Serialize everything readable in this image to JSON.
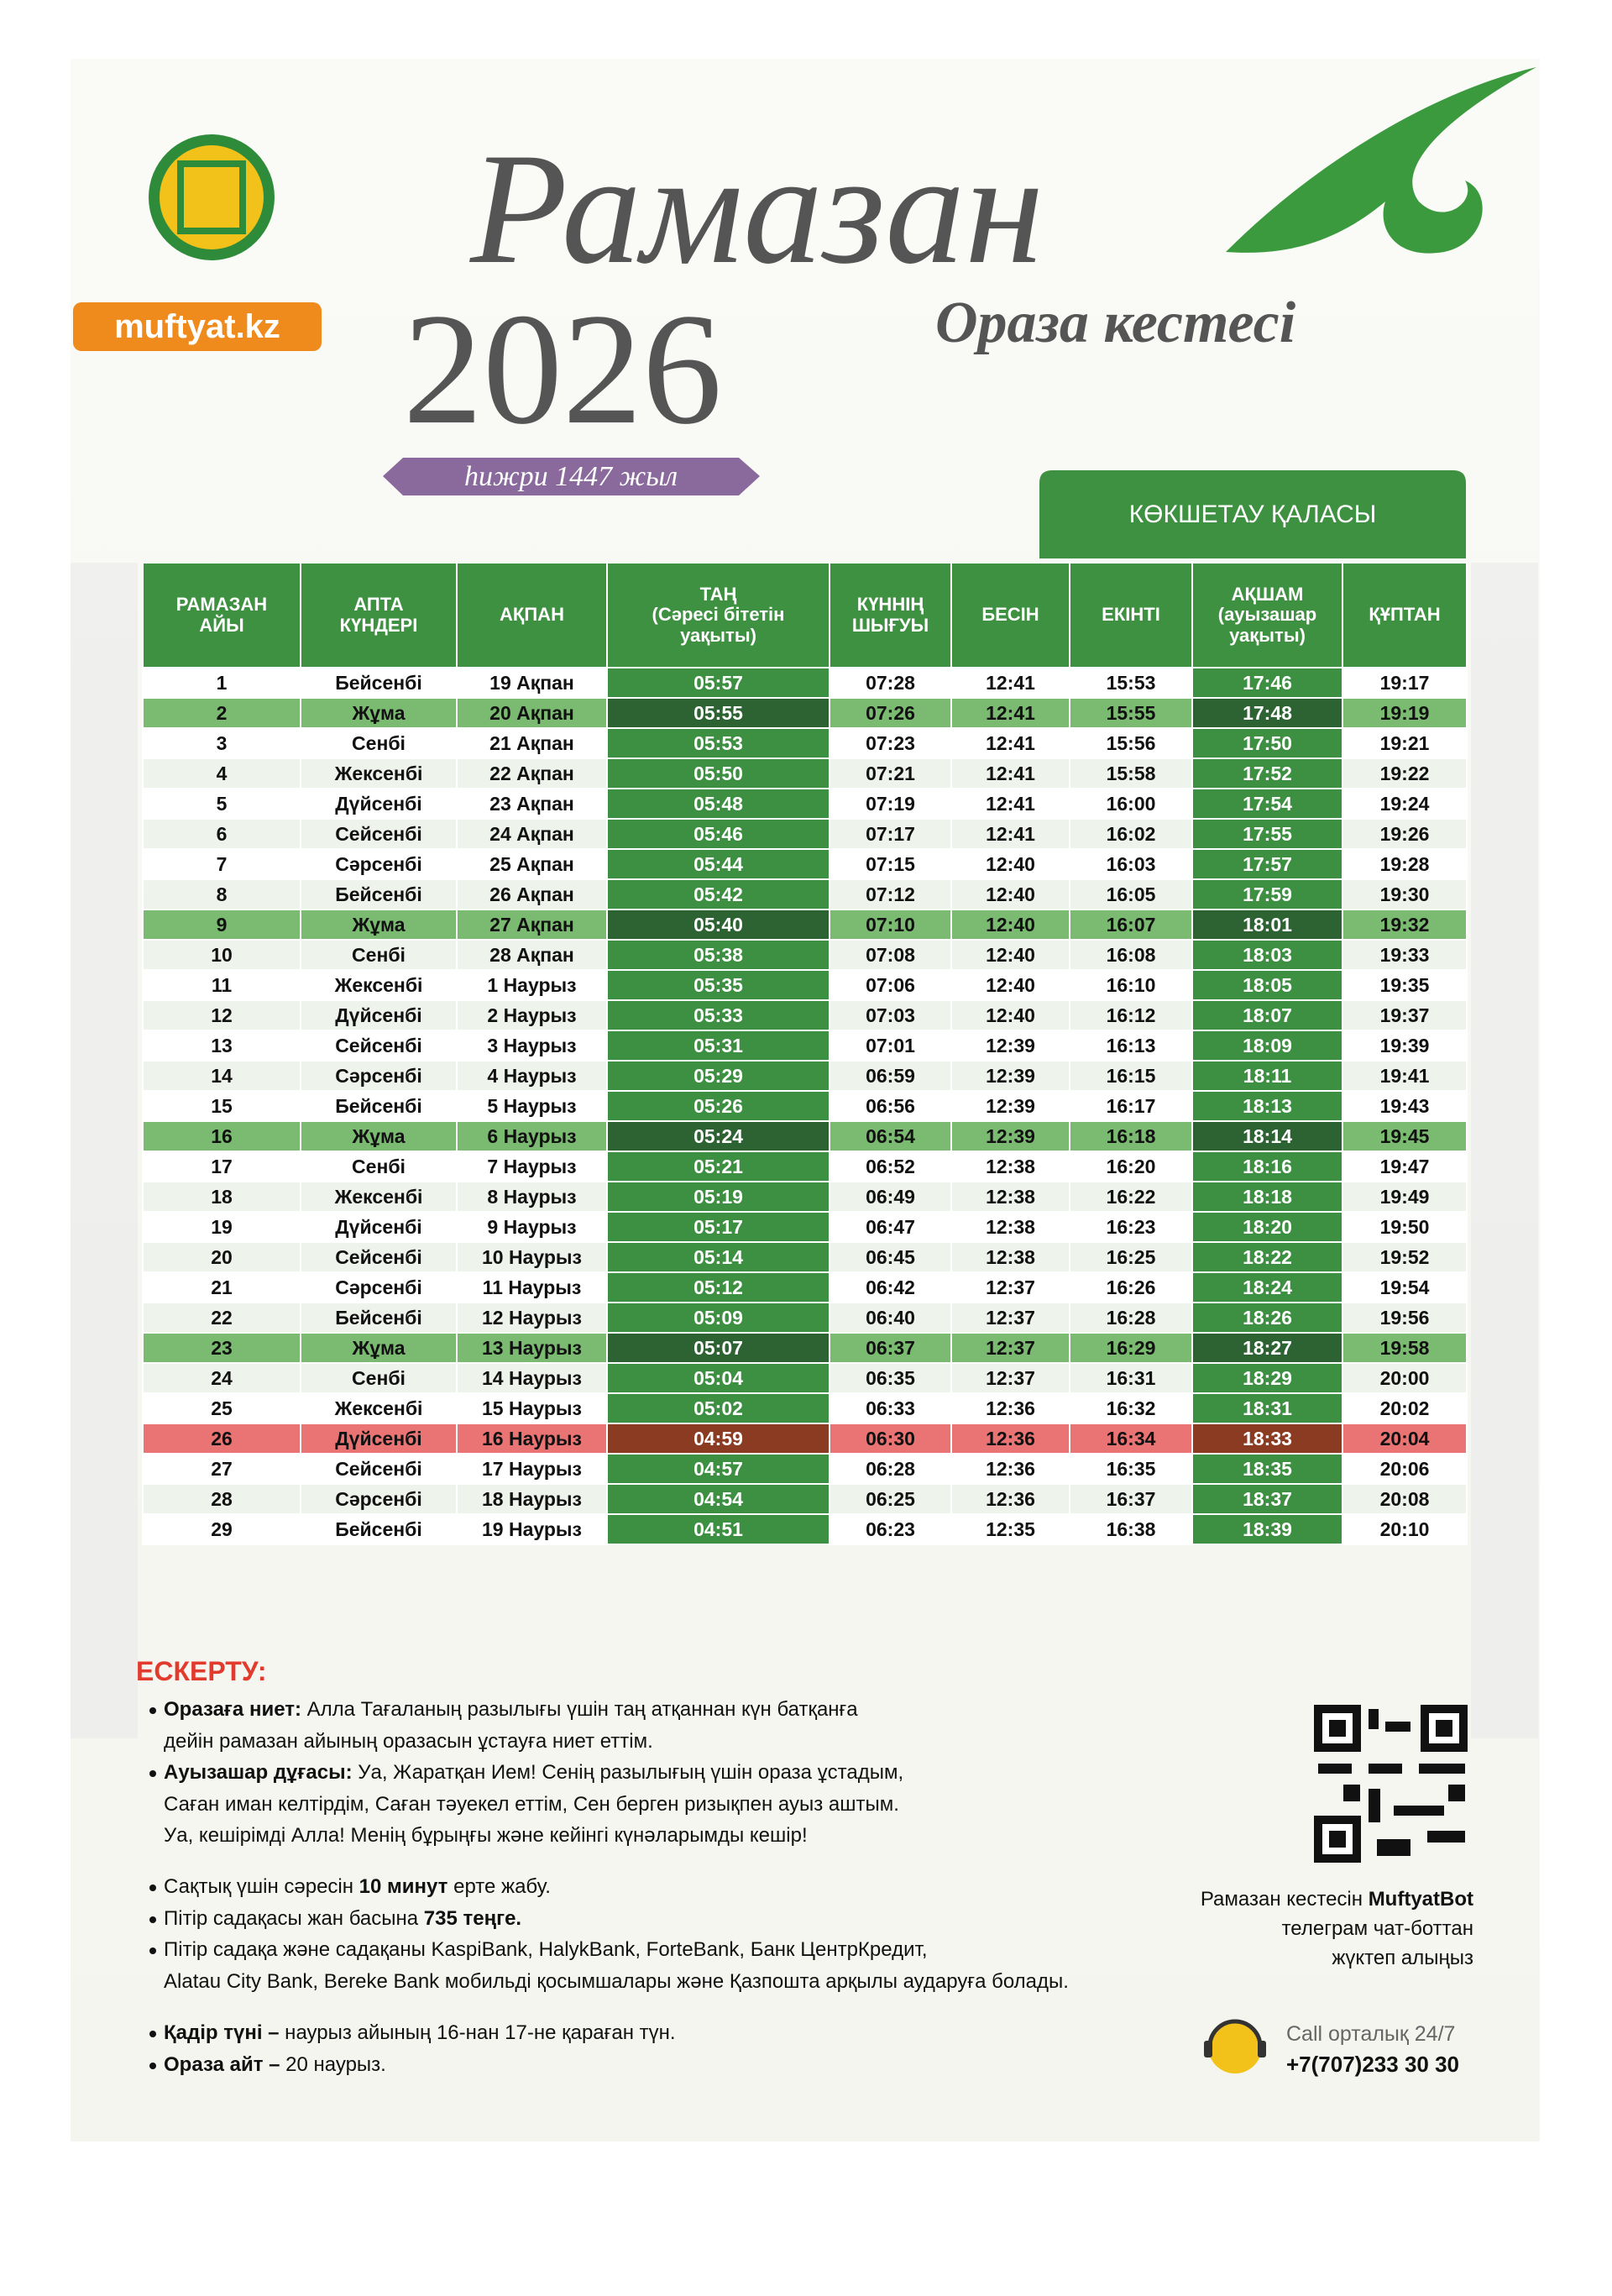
{
  "header": {
    "website": "muftyat.kz",
    "title": "Рамазан",
    "year": "2026",
    "subtitle": "Ораза кестесі",
    "hijri": "һижри 1447 жыл",
    "city": "КӨКШЕТАУ ҚАЛАСЫ"
  },
  "table": {
    "columns": [
      "РАМАЗАН\nАЙЫ",
      "АПТА\nКҮНДЕРІ",
      "АҚПАН",
      "ТАҢ\n(Сәресі бітетін\nуақыты)",
      "КҮННІҢ\nШЫҒУЫ",
      "БЕСІН",
      "ЕКІНТІ",
      "АҚШАМ\n(ауызашар\nуақыты)",
      "ҚҰПТАН"
    ],
    "rows": [
      [
        "1",
        "Бейсенбі",
        "19 Ақпан",
        "05:57",
        "07:28",
        "12:41",
        "15:53",
        "17:46",
        "19:17"
      ],
      [
        "2",
        "Жұма",
        "20 Ақпан",
        "05:55",
        "07:26",
        "12:41",
        "15:55",
        "17:48",
        "19:19"
      ],
      [
        "3",
        "Сенбі",
        "21 Ақпан",
        "05:53",
        "07:23",
        "12:41",
        "15:56",
        "17:50",
        "19:21"
      ],
      [
        "4",
        "Жексенбі",
        "22 Ақпан",
        "05:50",
        "07:21",
        "12:41",
        "15:58",
        "17:52",
        "19:22"
      ],
      [
        "5",
        "Дүйсенбі",
        "23 Ақпан",
        "05:48",
        "07:19",
        "12:41",
        "16:00",
        "17:54",
        "19:24"
      ],
      [
        "6",
        "Сейсенбі",
        "24 Ақпан",
        "05:46",
        "07:17",
        "12:41",
        "16:02",
        "17:55",
        "19:26"
      ],
      [
        "7",
        "Сәрсенбі",
        "25 Ақпан",
        "05:44",
        "07:15",
        "12:40",
        "16:03",
        "17:57",
        "19:28"
      ],
      [
        "8",
        "Бейсенбі",
        "26 Ақпан",
        "05:42",
        "07:12",
        "12:40",
        "16:05",
        "17:59",
        "19:30"
      ],
      [
        "9",
        "Жұма",
        "27 Ақпан",
        "05:40",
        "07:10",
        "12:40",
        "16:07",
        "18:01",
        "19:32"
      ],
      [
        "10",
        "Сенбі",
        "28 Ақпан",
        "05:38",
        "07:08",
        "12:40",
        "16:08",
        "18:03",
        "19:33"
      ],
      [
        "11",
        "Жексенбі",
        "1 Наурыз",
        "05:35",
        "07:06",
        "12:40",
        "16:10",
        "18:05",
        "19:35"
      ],
      [
        "12",
        "Дүйсенбі",
        "2 Наурыз",
        "05:33",
        "07:03",
        "12:40",
        "16:12",
        "18:07",
        "19:37"
      ],
      [
        "13",
        "Сейсенбі",
        "3 Наурыз",
        "05:31",
        "07:01",
        "12:39",
        "16:13",
        "18:09",
        "19:39"
      ],
      [
        "14",
        "Сәрсенбі",
        "4 Наурыз",
        "05:29",
        "06:59",
        "12:39",
        "16:15",
        "18:11",
        "19:41"
      ],
      [
        "15",
        "Бейсенбі",
        "5 Наурыз",
        "05:26",
        "06:56",
        "12:39",
        "16:17",
        "18:13",
        "19:43"
      ],
      [
        "16",
        "Жұма",
        "6 Наурыз",
        "05:24",
        "06:54",
        "12:39",
        "16:18",
        "18:14",
        "19:45"
      ],
      [
        "17",
        "Сенбі",
        "7 Наурыз",
        "05:21",
        "06:52",
        "12:38",
        "16:20",
        "18:16",
        "19:47"
      ],
      [
        "18",
        "Жексенбі",
        "8 Наурыз",
        "05:19",
        "06:49",
        "12:38",
        "16:22",
        "18:18",
        "19:49"
      ],
      [
        "19",
        "Дүйсенбі",
        "9 Наурыз",
        "05:17",
        "06:47",
        "12:38",
        "16:23",
        "18:20",
        "19:50"
      ],
      [
        "20",
        "Сейсенбі",
        "10 Наурыз",
        "05:14",
        "06:45",
        "12:38",
        "16:25",
        "18:22",
        "19:52"
      ],
      [
        "21",
        "Сәрсенбі",
        "11 Наурыз",
        "05:12",
        "06:42",
        "12:37",
        "16:26",
        "18:24",
        "19:54"
      ],
      [
        "22",
        "Бейсенбі",
        "12 Наурыз",
        "05:09",
        "06:40",
        "12:37",
        "16:28",
        "18:26",
        "19:56"
      ],
      [
        "23",
        "Жұма",
        "13 Наурыз",
        "05:07",
        "06:37",
        "12:37",
        "16:29",
        "18:27",
        "19:58"
      ],
      [
        "24",
        "Сенбі",
        "14 Наурыз",
        "05:04",
        "06:35",
        "12:37",
        "16:31",
        "18:29",
        "20:00"
      ],
      [
        "25",
        "Жексенбі",
        "15 Наурыз",
        "05:02",
        "06:33",
        "12:36",
        "16:32",
        "18:31",
        "20:02"
      ],
      [
        "26",
        "Дүйсенбі",
        "16 Наурыз",
        "04:59",
        "06:30",
        "12:36",
        "16:34",
        "18:33",
        "20:04"
      ],
      [
        "27",
        "Сейсенбі",
        "17 Наурыз",
        "04:57",
        "06:28",
        "12:36",
        "16:35",
        "18:35",
        "20:06"
      ],
      [
        "28",
        "Сәрсенбі",
        "18 Наурыз",
        "04:54",
        "06:25",
        "12:36",
        "16:37",
        "18:37",
        "20:08"
      ],
      [
        "29",
        "Бейсенбі",
        "19 Наурыз",
        "04:51",
        "06:23",
        "12:35",
        "16:38",
        "18:39",
        "20:10"
      ]
    ]
  },
  "notes": {
    "title": "ЕСКЕРТУ:",
    "items": [
      [
        [
          {
            "bold": "Оразаға ниет:"
          },
          {
            "text": " Алла Тағаланың разылығы үшін таң атқаннан күн батқанға"
          }
        ],
        [
          {
            "text": "дейін рамазан айының оразасын ұстауға ниет еттім."
          }
        ]
      ],
      [
        [
          {
            "bold": "Ауызашар дұғасы:"
          },
          {
            "text": " Уа, Жаратқан Ием! Сенің разылығың үшін ораза ұстадым,"
          }
        ],
        [
          {
            "text": "Саған иман келтірдім, Саған тәуекел еттім, Сен берген ризықпен ауыз аштым."
          }
        ],
        [
          {
            "text": "Уа, кешірімді Алла! Менің бұрыңғы және кейінгі күнәларымды кешір!"
          }
        ]
      ],
      [
        [
          {
            "text": "Сақтық үшін сәресін "
          },
          {
            "bold": "10 минут"
          },
          {
            "text": " ерте жабу."
          }
        ]
      ],
      [
        [
          {
            "text": "Пітір садақасы жан басына "
          },
          {
            "bold": "735 теңге."
          }
        ]
      ],
      [
        [
          {
            "text": "Пітір садақа және садақаны KaspiBank, HalykBank, ForteBank, Банк ЦентрКредит,"
          }
        ],
        [
          {
            "text": "Alatau City Bank, Bereke Bank мобильді қосымшалары және Қазпошта арқылы аударуға болады."
          }
        ]
      ],
      [
        [
          {
            "bold": "Қадір түні –"
          },
          {
            "text": " наурыз айының 16-нан 17-не қараған түн."
          }
        ]
      ],
      [
        [
          {
            "bold": "Ораза айт –"
          },
          {
            "text": " 20 наурыз."
          }
        ]
      ]
    ]
  },
  "contact": {
    "bot_lines": [
      [
        {
          "text": "Рамазан кестесін "
        },
        {
          "bold": "MuftyatBot"
        }
      ],
      [
        {
          "text": "телеграм чат-боттан"
        }
      ],
      [
        {
          "text": "жүктеп алыңыз"
        }
      ]
    ],
    "call_label": "Call орталық 24/7",
    "phone": "+7(707)233 30 30"
  }
}
